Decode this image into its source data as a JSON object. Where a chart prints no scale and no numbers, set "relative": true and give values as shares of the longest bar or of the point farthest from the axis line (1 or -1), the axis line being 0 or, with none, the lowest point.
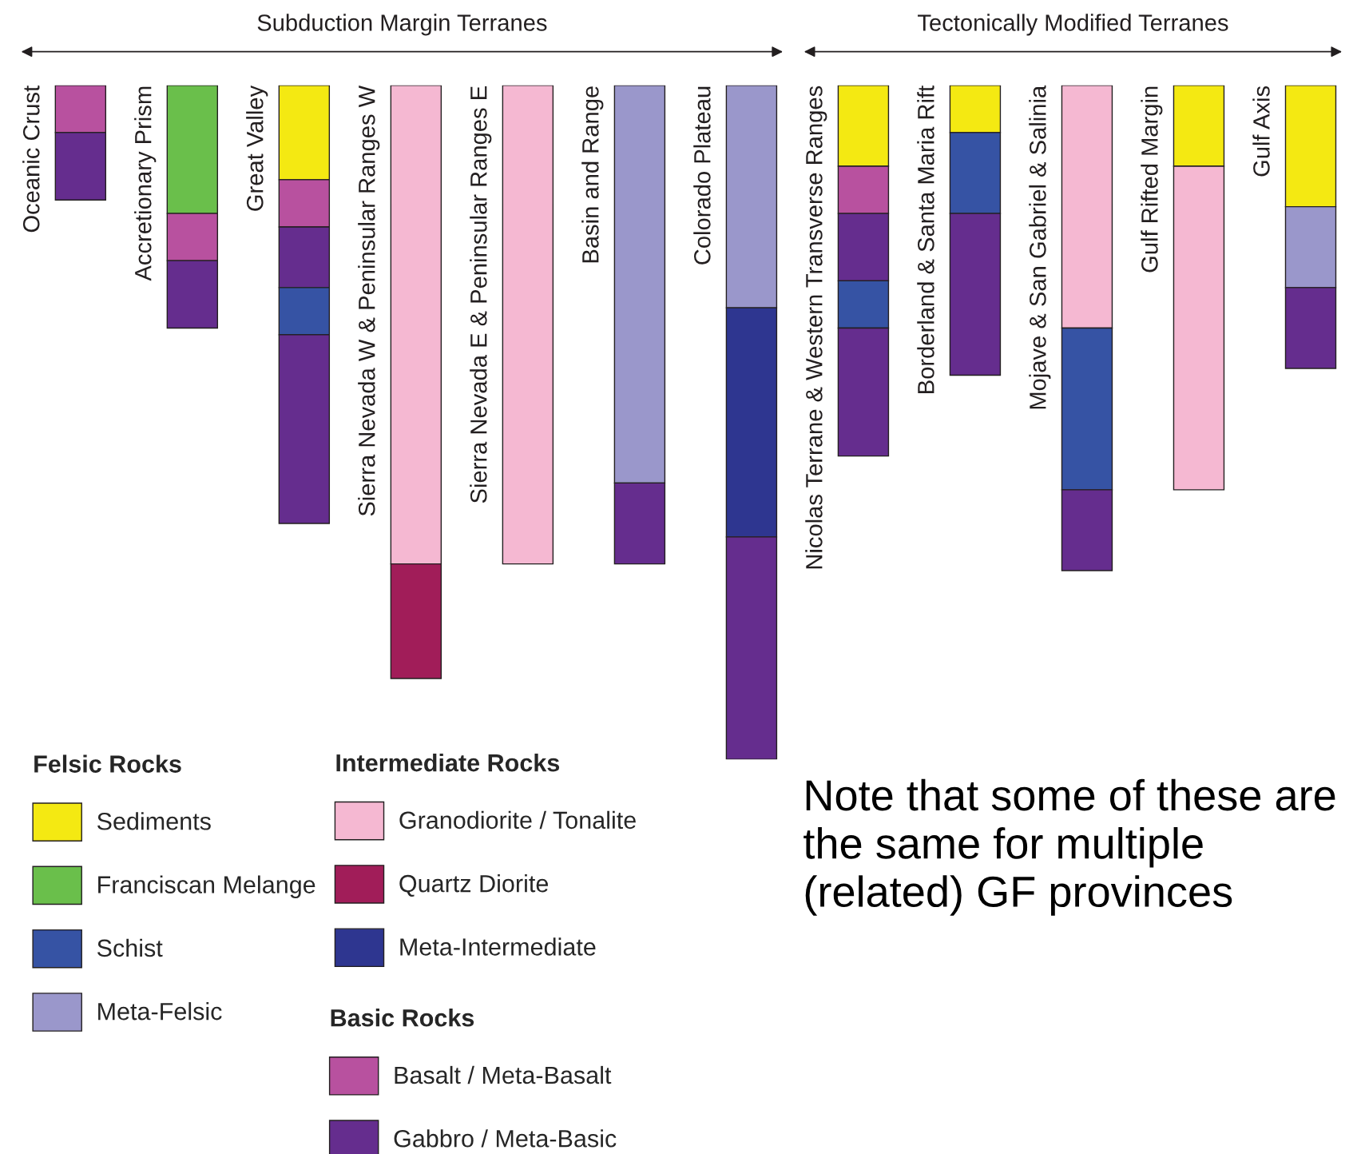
{
  "chart_data": {
    "type": "bar",
    "stacked": true,
    "relative": true,
    "legend": "bottom left",
    "categories": [
      "Oceanic Crust",
      "Accretionary Prism",
      "Great Valley",
      "Sierra Nevada W & Peninsular Ranges W",
      "Sierra Nevada E & Peninsular Ranges E",
      "Basin and Range",
      "Colorado Plateau",
      "Nicolas Terrane & Western Transverse Ranges",
      "Borderland & Santa Maria Rift",
      "Mojave & San Gabriel & Salinia",
      "Gulf Rifted Margin",
      "Gulf Axis"
    ],
    "series": [
      {
        "name": "Sediments",
        "color": "#f4e912",
        "values": [
          null,
          null,
          -0.14,
          null,
          null,
          null,
          null,
          -0.12,
          -0.07,
          null,
          -0.12,
          -0.18
        ]
      },
      {
        "name": "Franciscan Melange",
        "color": "#6abf4b",
        "values": [
          null,
          -0.19,
          null,
          null,
          null,
          null,
          null,
          null,
          null,
          null,
          null,
          null
        ]
      },
      {
        "name": "Granodiorite / Tonalite",
        "color": "#f5b8d2",
        "values": [
          null,
          null,
          null,
          -0.71,
          -0.71,
          null,
          null,
          null,
          null,
          -0.36,
          -0.48,
          null
        ]
      },
      {
        "name": "Meta-Felsic",
        "color": "#9a97cb",
        "values": [
          null,
          null,
          null,
          null,
          null,
          -0.59,
          -0.33,
          null,
          null,
          null,
          null,
          -0.12
        ]
      },
      {
        "name": "Basalt / Meta-Basalt",
        "color": "#b8519f",
        "values": [
          -0.07,
          -0.07,
          -0.07,
          null,
          null,
          null,
          null,
          -0.07,
          null,
          null,
          null,
          null
        ]
      },
      {
        "name": "Gabbro / Meta-Basic",
        "color": "#652d8e",
        "values": [
          -0.1,
          -0.1,
          -0.09,
          null,
          null,
          null,
          null,
          -0.1,
          null,
          null,
          null,
          -0.12
        ]
      },
      {
        "name": "Schist",
        "color": "#3653a4",
        "values": [
          null,
          null,
          -0.07,
          null,
          null,
          null,
          null,
          -0.07,
          -0.12,
          -0.24,
          null,
          null
        ]
      },
      {
        "name": "Meta-Intermediate",
        "color": "#2e3690",
        "values": [
          null,
          null,
          null,
          null,
          null,
          null,
          -0.34,
          null,
          null,
          null,
          null,
          null
        ]
      },
      {
        "name": "Quartz Diorite",
        "color": "#a11d59",
        "values": [
          null,
          null,
          null,
          -0.17,
          null,
          null,
          null,
          null,
          null,
          null,
          null,
          null
        ]
      },
      {
        "color": "#652d8e",
        "values": [
          null,
          null,
          -0.28,
          null,
          null,
          -0.12,
          -0.33,
          -0.19,
          -0.24,
          -0.12,
          null,
          null
        ]
      }
    ],
    "annotations": [
      "Subduction Margin Terranes",
      "Tectonically Modified Terranes",
      "Felsic Rocks",
      "Intermediate Rocks",
      "Basic Rocks",
      "Note that some of these are the same for multiple (related) GF provinces"
    ]
  }
}
